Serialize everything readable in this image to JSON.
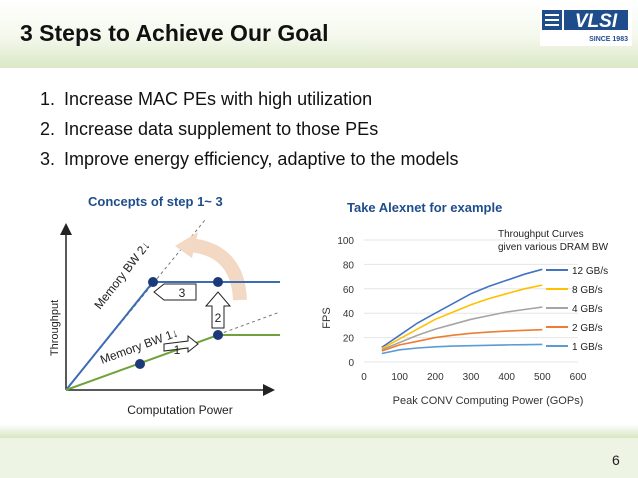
{
  "slide": {
    "title": "3 Steps to Achieve Our Goal",
    "page_number": "6",
    "logo": {
      "text": "VLSI",
      "subtitle": "SINCE 1983"
    }
  },
  "steps": [
    {
      "num": "1.",
      "text": "Increase MAC PEs with high utilization"
    },
    {
      "num": "2.",
      "text": "Increase data supplement to those PEs"
    },
    {
      "num": "3.",
      "text": "Improve energy efficiency, adaptive to the models"
    }
  ],
  "concept": {
    "title": "Concepts of step 1~ 3",
    "y_label": "Throughput",
    "x_label": "Computation Power",
    "line_labels": {
      "bw2": "Memory BW 2↓",
      "bw1": "Memory BW 1↓"
    },
    "markers": [
      "1",
      "2",
      "3"
    ]
  },
  "alexnet": {
    "title": "Take Alexnet for example"
  },
  "chart_data": {
    "type": "line",
    "title": "",
    "xlabel": "Peak CONV Computing Power  (GOPs)",
    "ylabel": "FPS",
    "xlim": [
      0,
      600
    ],
    "ylim": [
      0,
      100
    ],
    "x_ticks": [
      0,
      100,
      200,
      300,
      400,
      500,
      600
    ],
    "y_ticks": [
      0,
      20,
      40,
      60,
      80,
      100
    ],
    "grid": "horizontal",
    "legend_title": "Throughput Curves given various DRAM BW",
    "legend_position": "right",
    "series": [
      {
        "name": "12 GB/s",
        "color": "#4472c4",
        "x": [
          50,
          100,
          150,
          200,
          250,
          300,
          350,
          400,
          450,
          500
        ],
        "y": [
          12,
          22,
          32,
          40,
          48,
          56,
          62,
          67,
          72,
          76
        ]
      },
      {
        "name": "8 GB/s",
        "color": "#ffc000",
        "x": [
          50,
          100,
          150,
          200,
          250,
          300,
          350,
          400,
          450,
          500
        ],
        "y": [
          11,
          19,
          27,
          35,
          41,
          47,
          52,
          56,
          60,
          63
        ]
      },
      {
        "name": "4 GB/s",
        "color": "#a5a5a5",
        "x": [
          50,
          100,
          150,
          200,
          250,
          300,
          350,
          400,
          450,
          500
        ],
        "y": [
          10,
          16,
          22,
          27,
          31,
          35,
          38,
          41,
          43,
          45
        ]
      },
      {
        "name": "2 GB/s",
        "color": "#ed7d31",
        "x": [
          50,
          100,
          150,
          200,
          250,
          300,
          350,
          400,
          450,
          500
        ],
        "y": [
          9,
          14,
          17,
          20,
          22,
          23.5,
          24.5,
          25.3,
          26,
          26.5
        ]
      },
      {
        "name": "1 GB/s",
        "color": "#5b9bd5",
        "x": [
          50,
          100,
          150,
          200,
          250,
          300,
          350,
          400,
          450,
          500
        ],
        "y": [
          7,
          10,
          11.5,
          12.5,
          13,
          13.4,
          13.7,
          14,
          14.2,
          14.4
        ]
      }
    ]
  }
}
